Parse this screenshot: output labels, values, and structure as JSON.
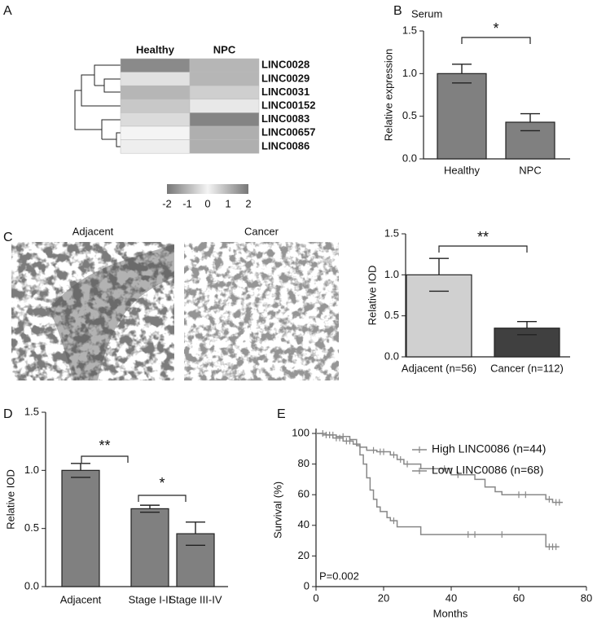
{
  "chart_data": [
    {
      "type": "heatmap",
      "panel": "A",
      "columns": [
        "Healthy",
        "NPC"
      ],
      "rows": [
        "LINC0028",
        "LINC0029",
        "LINC0031",
        "LINC00152",
        "LINC0083",
        "LINC00657",
        "LINC0086"
      ],
      "row_colors": [
        "#111111",
        "#111111",
        "#111111",
        "#111111",
        "#111111",
        "#111111",
        "#999999"
      ],
      "values": [
        [
          1.7,
          1.0
        ],
        [
          0.3,
          1.0
        ],
        [
          1.0,
          0.6
        ],
        [
          0.7,
          0.2
        ],
        [
          0.4,
          1.8
        ],
        [
          0.0,
          1.1
        ],
        [
          0.1,
          1.1
        ]
      ],
      "colormap": [
        "#777777",
        "#f4f4f4",
        "#777777"
      ],
      "clim": [
        -2,
        2
      ],
      "colorbar_ticks": [
        -2,
        -1,
        0,
        1,
        2
      ]
    },
    {
      "type": "bar",
      "panel": "B",
      "title": "Serum",
      "ylabel": "Relative expression",
      "categories": [
        "Healthy",
        "NPC"
      ],
      "values": [
        1.0,
        0.43
      ],
      "errors": [
        0.11,
        0.1
      ],
      "colors": [
        "#808080",
        "#808080"
      ],
      "ylim": [
        0,
        1.5
      ],
      "yticks": [
        {
          "value": 0,
          "label": "0.0"
        },
        {
          "value": 0.5,
          "label": "0.5"
        },
        {
          "value": 1,
          "label": "1.0"
        },
        {
          "value": 1.5,
          "label": "1.5"
        }
      ],
      "annotations": [
        "*"
      ]
    },
    {
      "type": "bar",
      "ylabel": "Relative IOD",
      "categories": [
        "Adjacent (n=56)",
        "Cancer (n=112)"
      ],
      "values": [
        1.0,
        0.35
      ],
      "errors": [
        0.2,
        0.08
      ],
      "colors": [
        "#d0d0d0",
        "#404040"
      ],
      "ylim": [
        0,
        1.5
      ],
      "yticks": [
        {
          "value": 0,
          "label": "0.0"
        },
        {
          "value": 0.5,
          "label": "0.5"
        },
        {
          "value": 1,
          "label": "1.0"
        },
        {
          "value": 1.5,
          "label": "1.5"
        }
      ],
      "annotations": [
        "**"
      ]
    },
    {
      "type": "bar",
      "panel": "D",
      "ylabel": "Relative IOD",
      "categories": [
        "Adjacent",
        "Stage I-II",
        "Stage III-IV"
      ],
      "values": [
        1.0,
        0.67,
        0.455
      ],
      "errors": [
        0.06,
        0.03,
        0.1
      ],
      "colors": [
        "#808080",
        "#808080",
        "#808080"
      ],
      "ylim": [
        0,
        1.5
      ],
      "yticks": [
        {
          "value": 0,
          "label": "0.0"
        },
        {
          "value": 0.5,
          "label": "0.5"
        },
        {
          "value": 1,
          "label": "1.0"
        },
        {
          "value": 1.5,
          "label": "1.5"
        }
      ],
      "annotations": [
        "**",
        "*"
      ]
    },
    {
      "type": "km",
      "panel": "E",
      "xlabel": "Months",
      "ylabel": "Survival (%)",
      "annotation": "P=0.002",
      "xlim": [
        0,
        80
      ],
      "xticks": [
        0,
        20,
        40,
        60,
        80
      ],
      "ylim": [
        0,
        100
      ],
      "yticks": [
        0,
        20,
        40,
        60,
        80,
        100
      ],
      "legend": "upper right",
      "series": [
        {
          "name": "High LINC0086 (n=44)",
          "color": "#888888",
          "x": [
            0,
            2,
            5,
            8,
            11,
            13,
            15,
            18,
            22,
            24,
            26,
            31,
            40,
            47,
            50,
            53,
            55,
            68,
            70,
            73
          ],
          "values": [
            100,
            99,
            97,
            95,
            93,
            91,
            89,
            88,
            86,
            83,
            80,
            77,
            73,
            70,
            65,
            62,
            60,
            57,
            55,
            55
          ],
          "censor_x": [
            3,
            4,
            6,
            7,
            9,
            10,
            17,
            19,
            20,
            23,
            25,
            27,
            38,
            42,
            60,
            62,
            69,
            71,
            72
          ]
        },
        {
          "name": "Low LINC0086 (n=68)",
          "color": "#888888",
          "x": [
            0,
            3,
            6,
            10,
            12,
            13,
            14,
            15,
            16,
            17,
            18,
            19,
            21,
            22,
            24,
            31,
            68,
            72
          ],
          "values": [
            100,
            99,
            98,
            96,
            92,
            86,
            80,
            71,
            63,
            57,
            52,
            49,
            45,
            43,
            39,
            34,
            26,
            26
          ],
          "censor_x": [
            2,
            4,
            5,
            8,
            23,
            45,
            47,
            55,
            69,
            70,
            71
          ]
        }
      ]
    }
  ],
  "images": {
    "panel": "C",
    "titles": [
      "Adjacent",
      "Cancer"
    ]
  }
}
